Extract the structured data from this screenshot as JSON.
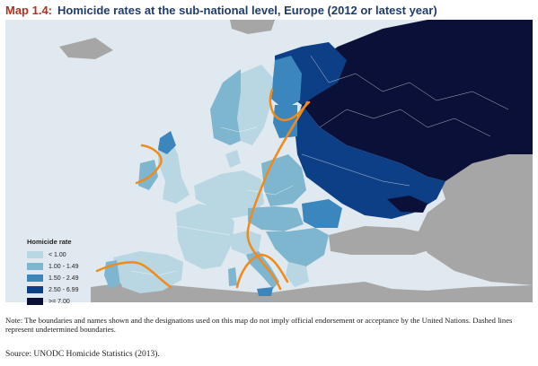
{
  "title": {
    "number": "Map 1.4:",
    "text": "Homicide rates at the sub-national level, Europe (2012 or latest year)"
  },
  "legend": {
    "title": "Homicide rate",
    "items": [
      {
        "label": "< 1.00",
        "color": "#b8d7e2"
      },
      {
        "label": "1.00 - 1.49",
        "color": "#7fb6cf"
      },
      {
        "label": "1.50 - 2.49",
        "color": "#3b86bc"
      },
      {
        "label": "2.50 - 6.99",
        "color": "#0d3f86"
      },
      {
        "label": ">= 7.00",
        "color": "#0b1038"
      }
    ]
  },
  "colors": {
    "sea": "#dfe9ef",
    "non_data_land": "#a6a6a6",
    "annotation_lines": "#f08a1c"
  },
  "note": "Note: The boundaries and names shown and the designations used on this map do not imply official endorsement or acceptance by the United Nations. Dashed lines represent undetermined boundaries.",
  "source": "Source: UNODC Homicide Statistics (2013)."
}
